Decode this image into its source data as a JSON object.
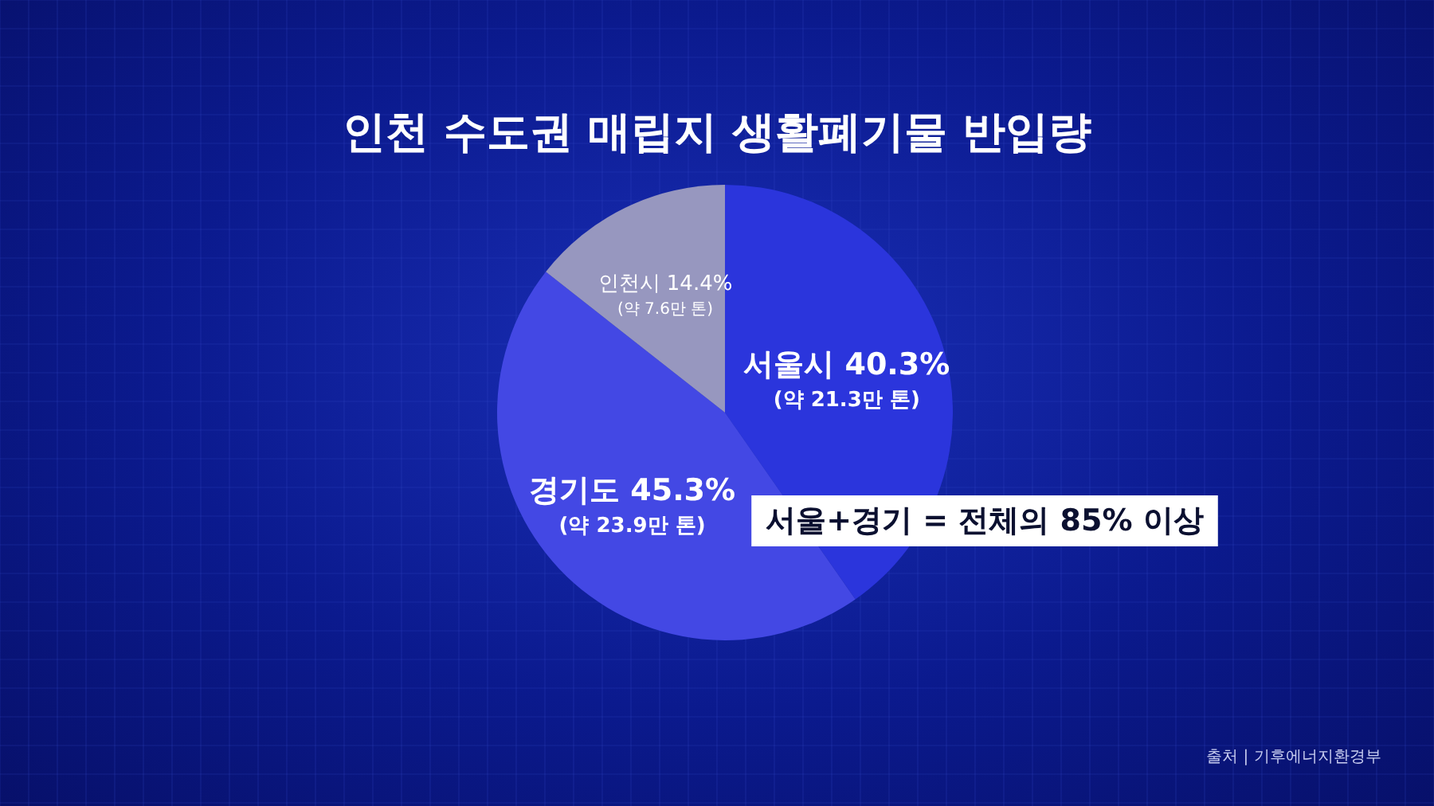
{
  "chart_data": {
    "type": "pie",
    "title": "인천 수도권 매립지 생활폐기물 반입량",
    "categories": [
      "서울시",
      "경기도",
      "인천시"
    ],
    "values": [
      40.3,
      45.3,
      14.4
    ],
    "colors": [
      "#2b35dc",
      "#4348e4",
      "#9797bf"
    ],
    "value_labels": [
      "40.3%",
      "45.3%",
      "14.4%"
    ],
    "legend": false,
    "annotations": [
      {
        "text": "(약 21.3만 톤)",
        "x": "서울시"
      },
      {
        "text": "(약 23.9만 톤)",
        "x": "경기도"
      },
      {
        "text": "(약 7.6만 톤)",
        "x": "인천시"
      },
      "서울+경기 = 전체의 85% 이상",
      "출처 | 기후에너지환경부"
    ]
  }
}
